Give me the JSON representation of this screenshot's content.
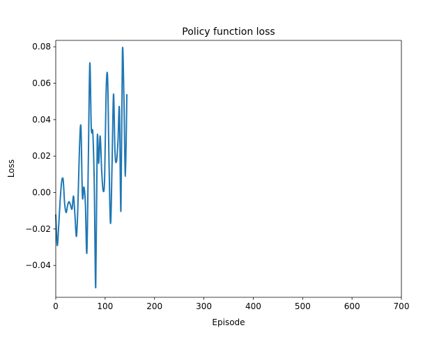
{
  "chart_data": {
    "type": "line",
    "title": "Policy function loss",
    "xlabel": "Episode",
    "ylabel": "Loss",
    "xlim": [
      0,
      700
    ],
    "ylim": [
      -0.0575,
      0.0835
    ],
    "grid": false,
    "legend": "none",
    "x_ticks": [
      0,
      100,
      200,
      300,
      400,
      500,
      600,
      700
    ],
    "x_tick_labels": [
      "0",
      "100",
      "200",
      "300",
      "400",
      "500",
      "600",
      "700"
    ],
    "y_ticks": [
      -0.04,
      -0.02,
      0.0,
      0.02,
      0.04,
      0.06,
      0.08
    ],
    "y_tick_labels": [
      "−0.04",
      "−0.02",
      "0.00",
      "0.02",
      "0.04",
      "0.06",
      "0.08"
    ],
    "series": [
      {
        "color": "#1f77b4",
        "x": [
          0,
          3,
          6,
          9,
          12,
          15,
          18,
          21,
          24,
          27,
          30,
          33,
          36,
          39,
          42,
          45,
          48,
          51,
          54,
          57,
          60,
          63,
          66,
          69,
          72,
          75,
          78,
          81,
          84,
          87,
          90,
          93,
          96,
          99,
          102,
          105,
          108,
          111,
          114,
          117,
          120,
          123,
          126,
          129,
          132,
          135,
          138,
          141,
          144,
          147,
          150,
          153,
          156,
          159,
          162
        ],
        "values": [
          -0.012,
          -0.029,
          -0.018,
          -0.004,
          0.006,
          0.007,
          -0.006,
          -0.011,
          -0.007,
          -0.005,
          -0.007,
          -0.009,
          -0.002,
          -0.013,
          -0.024,
          -0.006,
          0.024,
          0.036,
          -0.002,
          0.003,
          -0.006,
          -0.033,
          0.018,
          0.071,
          0.035,
          0.033,
          0.005,
          -0.052,
          0.029,
          0.016,
          0.031,
          0.012,
          0.001,
          0.008,
          0.055,
          0.063,
          0.015,
          -0.017,
          0.015,
          0.054,
          0.022,
          0.017,
          0.028,
          0.046,
          -0.01,
          0.077,
          0.053,
          0.009,
          0.054,
          null,
          null,
          null,
          null,
          null,
          null
        ]
      }
    ]
  }
}
